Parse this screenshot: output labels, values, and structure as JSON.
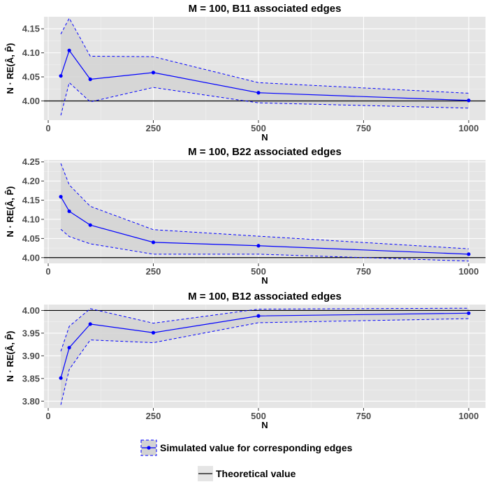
{
  "chart_data": [
    {
      "type": "line",
      "title": "M = 100, B11 associated edges",
      "xlabel": "N",
      "ylabel": "N · RE(Â, P̂)",
      "xlim": [
        -10,
        1040
      ],
      "ylim": [
        3.96,
        4.175
      ],
      "xticks": [
        0,
        250,
        500,
        750,
        1000
      ],
      "xticklabels": [
        "0",
        "250",
        "500",
        "750",
        "1000"
      ],
      "yticks": [
        4.0,
        4.05,
        4.1,
        4.15
      ],
      "yticklabels": [
        "4.00",
        "4.05",
        "4.10",
        "4.15"
      ],
      "theoretical": 4.0,
      "x": [
        30,
        50,
        100,
        250,
        500,
        1000
      ],
      "series": [
        {
          "name": "Simulated value for corresponding edges",
          "values": [
            4.052,
            4.105,
            4.045,
            4.059,
            4.017,
            4.001
          ]
        },
        {
          "name": "",
          "values": [
            4.139,
            4.172,
            4.093,
            4.092,
            4.038,
            4.016
          ]
        },
        {
          "name": "",
          "values": [
            3.97,
            4.038,
            3.998,
            4.028,
            3.996,
            3.985
          ]
        }
      ]
    },
    {
      "type": "line",
      "title": "M = 100, B22 associated edges",
      "xlabel": "N",
      "ylabel": "N · RE(Â, P̂)",
      "xlim": [
        -10,
        1040
      ],
      "ylim": [
        3.985,
        4.255
      ],
      "xticks": [
        0,
        250,
        500,
        750,
        1000
      ],
      "xticklabels": [
        "0",
        "250",
        "500",
        "750",
        "1000"
      ],
      "yticks": [
        4.0,
        4.05,
        4.1,
        4.15,
        4.2,
        4.25
      ],
      "yticklabels": [
        "4.00",
        "4.05",
        "4.10",
        "4.15",
        "4.20",
        "4.25"
      ],
      "theoretical": 4.0,
      "x": [
        30,
        50,
        100,
        250,
        500,
        1000
      ],
      "series": [
        {
          "name": "Simulated value for corresponding edges",
          "values": [
            4.159,
            4.121,
            4.085,
            4.04,
            4.031,
            4.009
          ]
        },
        {
          "name": "",
          "values": [
            4.246,
            4.19,
            4.134,
            4.073,
            4.056,
            4.023
          ]
        },
        {
          "name": "",
          "values": [
            4.074,
            4.055,
            4.036,
            4.009,
            4.009,
            3.991
          ]
        }
      ]
    },
    {
      "type": "line",
      "title": "M = 100, B12 associated edges",
      "xlabel": "N",
      "ylabel": "N · RE(Â, P̂)",
      "xlim": [
        -10,
        1040
      ],
      "ylim": [
        3.785,
        4.013
      ],
      "xticks": [
        0,
        250,
        500,
        750,
        1000
      ],
      "xticklabels": [
        "0",
        "250",
        "500",
        "750",
        "1000"
      ],
      "yticks": [
        3.8,
        3.85,
        3.9,
        3.95,
        4.0
      ],
      "yticklabels": [
        "3.80",
        "3.85",
        "3.90",
        "3.95",
        "4.00"
      ],
      "theoretical": 4.0,
      "x": [
        30,
        50,
        100,
        250,
        500,
        1000
      ],
      "series": [
        {
          "name": "Simulated value for corresponding edges",
          "values": [
            3.851,
            3.918,
            3.97,
            3.951,
            3.988,
            3.994
          ]
        },
        {
          "name": "",
          "values": [
            3.91,
            3.965,
            4.004,
            3.972,
            4.003,
            4.005
          ]
        },
        {
          "name": "",
          "values": [
            3.792,
            3.87,
            3.935,
            3.929,
            3.973,
            3.982
          ]
        }
      ]
    }
  ],
  "legend": {
    "simulated_label": "Simulated value for corresponding edges",
    "theoretical_label": "Theoretical value"
  },
  "colors": {
    "simulated": "#0000ff",
    "theoretical": "#000000",
    "panel_bg": "#e5e5e5",
    "ribbon": "#d3d3d3",
    "tick_text": "#4d4d4d"
  }
}
